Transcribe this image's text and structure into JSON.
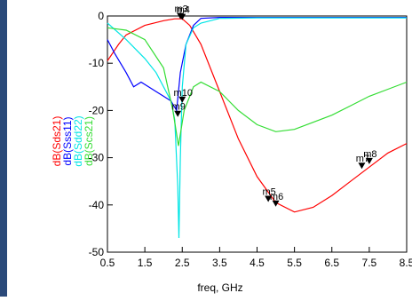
{
  "chart_data": {
    "type": "line",
    "xlabel": "freq, GHz",
    "xlim": [
      0.5,
      8.5
    ],
    "ylim": [
      -50,
      0
    ],
    "x_ticks": [
      "0.5",
      "1.5",
      "2.5",
      "3.5",
      "4.5",
      "5.5",
      "6.5",
      "7.5",
      "8.5"
    ],
    "y_ticks": [
      "0",
      "-10",
      "-20",
      "-30",
      "-40",
      "-50"
    ],
    "grid": false,
    "series": [
      {
        "name": "dB(Sds21)",
        "color": "#ff0000",
        "points": [
          [
            0.5,
            -9.5
          ],
          [
            0.8,
            -6
          ],
          [
            1.0,
            -4
          ],
          [
            1.5,
            -2
          ],
          [
            2.0,
            -1
          ],
          [
            2.3,
            -0.6
          ],
          [
            2.5,
            -0.6
          ],
          [
            2.7,
            -2
          ],
          [
            3.0,
            -6
          ],
          [
            3.5,
            -16
          ],
          [
            4.0,
            -26
          ],
          [
            4.5,
            -34
          ],
          [
            5.0,
            -39.5
          ],
          [
            5.5,
            -41.5
          ],
          [
            6.0,
            -40.5
          ],
          [
            6.5,
            -38
          ],
          [
            7.0,
            -35
          ],
          [
            7.5,
            -32
          ],
          [
            8.0,
            -29
          ],
          [
            8.5,
            -27
          ]
        ]
      },
      {
        "name": "dB(Sss11)",
        "color": "#0000ff",
        "points": [
          [
            0.5,
            -5
          ],
          [
            0.7,
            -8
          ],
          [
            1.0,
            -12
          ],
          [
            1.2,
            -15
          ],
          [
            1.4,
            -14
          ],
          [
            1.6,
            -15
          ],
          [
            1.8,
            -16
          ],
          [
            2.0,
            -17
          ],
          [
            2.2,
            -18
          ],
          [
            2.35,
            -20
          ],
          [
            2.45,
            -12
          ],
          [
            2.6,
            -6
          ],
          [
            2.8,
            -2
          ],
          [
            3.0,
            -0.5
          ],
          [
            3.5,
            -0.3
          ],
          [
            4.5,
            -0.3
          ],
          [
            8.5,
            -0.3
          ]
        ]
      },
      {
        "name": "dB(Sdd22)",
        "color": "#00e5e5",
        "points": [
          [
            0.5,
            -1.5
          ],
          [
            1.0,
            -5
          ],
          [
            1.5,
            -9
          ],
          [
            1.8,
            -12
          ],
          [
            2.0,
            -15
          ],
          [
            2.2,
            -18
          ],
          [
            2.3,
            -22
          ],
          [
            2.38,
            -36
          ],
          [
            2.41,
            -47
          ],
          [
            2.45,
            -30
          ],
          [
            2.5,
            -15
          ],
          [
            2.6,
            -6
          ],
          [
            2.8,
            -2.5
          ],
          [
            3.0,
            -1.5
          ],
          [
            3.5,
            -0.5
          ],
          [
            4.5,
            -0.4
          ],
          [
            8.5,
            -0.4
          ]
        ]
      },
      {
        "name": "dB(Scs21)",
        "color": "#33dd33",
        "points": [
          [
            0.5,
            -2.5
          ],
          [
            1.0,
            -3
          ],
          [
            1.5,
            -5
          ],
          [
            2.0,
            -11
          ],
          [
            2.25,
            -20
          ],
          [
            2.4,
            -27.5
          ],
          [
            2.55,
            -20
          ],
          [
            2.8,
            -15
          ],
          [
            3.0,
            -14
          ],
          [
            3.5,
            -16
          ],
          [
            4.0,
            -20
          ],
          [
            4.5,
            -23
          ],
          [
            5.0,
            -24.5
          ],
          [
            5.5,
            -24
          ],
          [
            6.0,
            -22.5
          ],
          [
            6.5,
            -21
          ],
          [
            7.0,
            -19
          ],
          [
            7.5,
            -17
          ],
          [
            8.0,
            -15.5
          ],
          [
            8.5,
            -14
          ]
        ]
      }
    ],
    "markers": [
      {
        "label": "m3",
        "x": 2.45,
        "y": -0.3
      },
      {
        "label": "m4",
        "x": 2.5,
        "y": -0.5
      },
      {
        "label": "m10",
        "x": 2.5,
        "y": -18
      },
      {
        "label": "m9",
        "x": 2.38,
        "y": -21
      },
      {
        "label": "m5",
        "x": 4.8,
        "y": -39
      },
      {
        "label": "m6",
        "x": 5.0,
        "y": -40
      },
      {
        "label": "m7",
        "x": 7.3,
        "y": -32
      },
      {
        "label": "m8",
        "x": 7.5,
        "y": -31
      }
    ]
  }
}
